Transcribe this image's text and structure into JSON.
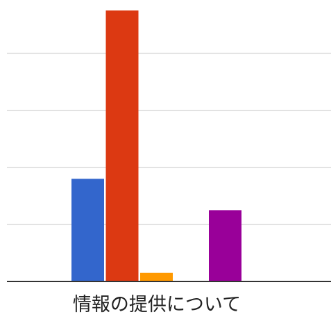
{
  "chart_data": {
    "type": "bar",
    "categories": [
      "情報の提供について"
    ],
    "series": [
      {
        "color": "#3366cc",
        "values": [
          36
        ]
      },
      {
        "color": "#dc3912",
        "values": [
          95
        ]
      },
      {
        "color": "#ff9900",
        "values": [
          3
        ]
      },
      {
        "color": "#990099",
        "values": [
          25
        ]
      }
    ],
    "title": "",
    "xlabel": "",
    "ylabel": "",
    "ylim": [
      0,
      96
    ],
    "y_gridline_step": 20,
    "grid": true,
    "legend": "none"
  }
}
